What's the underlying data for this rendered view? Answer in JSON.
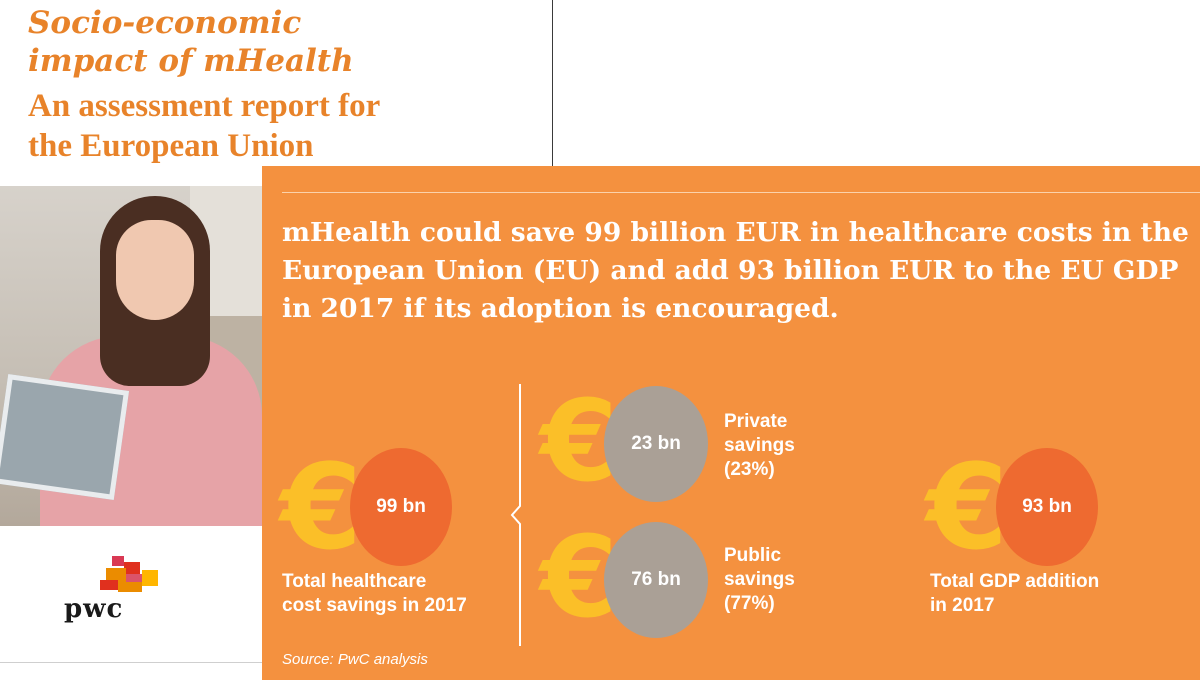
{
  "cover": {
    "title_line1": "Socio-economic",
    "title_line2": "impact of mHealth",
    "subtitle_line1": "An assessment report for",
    "subtitle_line2": "the European Union",
    "logo_text": "pwc"
  },
  "infographic": {
    "headline_line1": "mHealth could save 99 billion EUR in healthcare costs in the",
    "headline_line2": "European Union (EU) and add 93 billion EUR to the EU GDP",
    "headline_line3": "in 2017 if its adoption is encouraged.",
    "currency_symbol": "€",
    "total_savings": {
      "value": "99 bn",
      "label_line1": "Total healthcare",
      "label_line2": "cost savings in 2017"
    },
    "private_savings": {
      "value": "23 bn",
      "label_line1": "Private",
      "label_line2": "savings",
      "label_line3": "(23%)"
    },
    "public_savings": {
      "value": "76 bn",
      "label_line1": "Public",
      "label_line2": "savings",
      "label_line3": "(77%)"
    },
    "gdp_addition": {
      "value": "93 bn",
      "label_line1": "Total GDP addition",
      "label_line2": "in 2017"
    },
    "source": "Source: PwC analysis"
  },
  "colors": {
    "panel_orange": "#f4913f",
    "title_orange": "#e8832a",
    "euro_yellow": "#fbbf28",
    "circle_orange": "#ee6a30",
    "circle_grey": "#aaa096"
  },
  "icons": {
    "photo": "nurse-with-tablet-photo",
    "logo": "pwc-logo-icon"
  }
}
